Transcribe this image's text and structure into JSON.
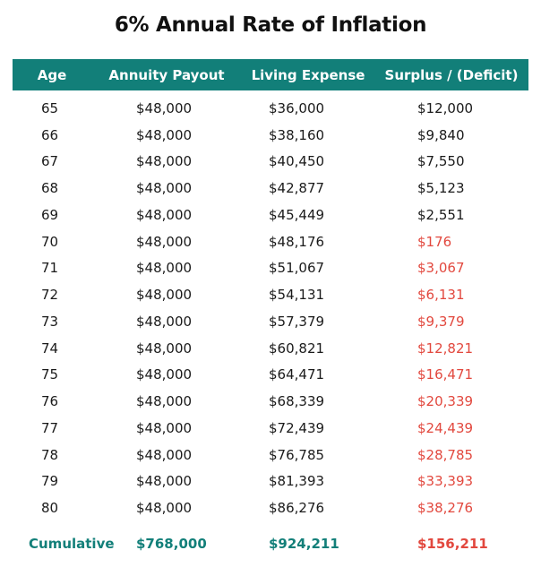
{
  "title": "6% Annual Rate of Inflation",
  "colors": {
    "header_bg": "#127f79",
    "accent": "#127f79",
    "deficit": "#e2483e",
    "text": "#1a1a1a"
  },
  "chart_data": {
    "type": "table",
    "title": "6% Annual Rate of Inflation",
    "columns": [
      "Age",
      "Annuity Payout",
      "Living Expense",
      "Surplus / (Deficit)"
    ],
    "rows": [
      {
        "age": "65",
        "annuity": "$48,000",
        "expense": "$36,000",
        "surplus": "$12,000",
        "deficit": false
      },
      {
        "age": "66",
        "annuity": "$48,000",
        "expense": "$38,160",
        "surplus": "$9,840",
        "deficit": false
      },
      {
        "age": "67",
        "annuity": "$48,000",
        "expense": "$40,450",
        "surplus": "$7,550",
        "deficit": false
      },
      {
        "age": "68",
        "annuity": "$48,000",
        "expense": "$42,877",
        "surplus": "$5,123",
        "deficit": false
      },
      {
        "age": "69",
        "annuity": "$48,000",
        "expense": "$45,449",
        "surplus": "$2,551",
        "deficit": false
      },
      {
        "age": "70",
        "annuity": "$48,000",
        "expense": "$48,176",
        "surplus": "$176",
        "deficit": true
      },
      {
        "age": "71",
        "annuity": "$48,000",
        "expense": "$51,067",
        "surplus": "$3,067",
        "deficit": true
      },
      {
        "age": "72",
        "annuity": "$48,000",
        "expense": "$54,131",
        "surplus": "$6,131",
        "deficit": true
      },
      {
        "age": "73",
        "annuity": "$48,000",
        "expense": "$57,379",
        "surplus": "$9,379",
        "deficit": true
      },
      {
        "age": "74",
        "annuity": "$48,000",
        "expense": "$60,821",
        "surplus": "$12,821",
        "deficit": true
      },
      {
        "age": "75",
        "annuity": "$48,000",
        "expense": "$64,471",
        "surplus": "$16,471",
        "deficit": true
      },
      {
        "age": "76",
        "annuity": "$48,000",
        "expense": "$68,339",
        "surplus": "$20,339",
        "deficit": true
      },
      {
        "age": "77",
        "annuity": "$48,000",
        "expense": "$72,439",
        "surplus": "$24,439",
        "deficit": true
      },
      {
        "age": "78",
        "annuity": "$48,000",
        "expense": "$76,785",
        "surplus": "$28,785",
        "deficit": true
      },
      {
        "age": "79",
        "annuity": "$48,000",
        "expense": "$81,393",
        "surplus": "$33,393",
        "deficit": true
      },
      {
        "age": "80",
        "annuity": "$48,000",
        "expense": "$86,276",
        "surplus": "$38,276",
        "deficit": true
      }
    ],
    "footer": {
      "label": "Cumulative",
      "annuity": "$768,000",
      "expense": "$924,211",
      "surplus": "$156,211",
      "deficit": true
    }
  }
}
